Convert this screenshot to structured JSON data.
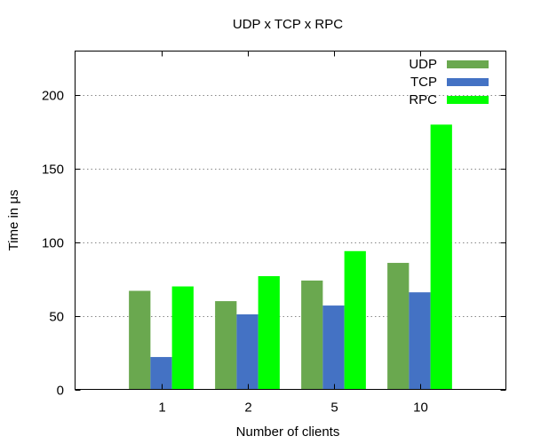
{
  "chart_data": {
    "type": "bar",
    "title": "UDP x TCP x RPC",
    "xlabel": "Number of clients",
    "ylabel": "Time in μs",
    "categories": [
      "1",
      "2",
      "5",
      "10"
    ],
    "ylim": [
      0,
      230
    ],
    "yticks": [
      0,
      50,
      100,
      150,
      200
    ],
    "grid": true,
    "legend_position": "top-right",
    "series": [
      {
        "name": "UDP",
        "color": "#6aa84f",
        "values": [
          67,
          60,
          74,
          86
        ]
      },
      {
        "name": "TCP",
        "color": "#4472c4",
        "values": [
          22,
          51,
          57,
          66
        ]
      },
      {
        "name": "RPC",
        "color": "#00ff00",
        "values": [
          70,
          77,
          94,
          180
        ]
      }
    ]
  }
}
